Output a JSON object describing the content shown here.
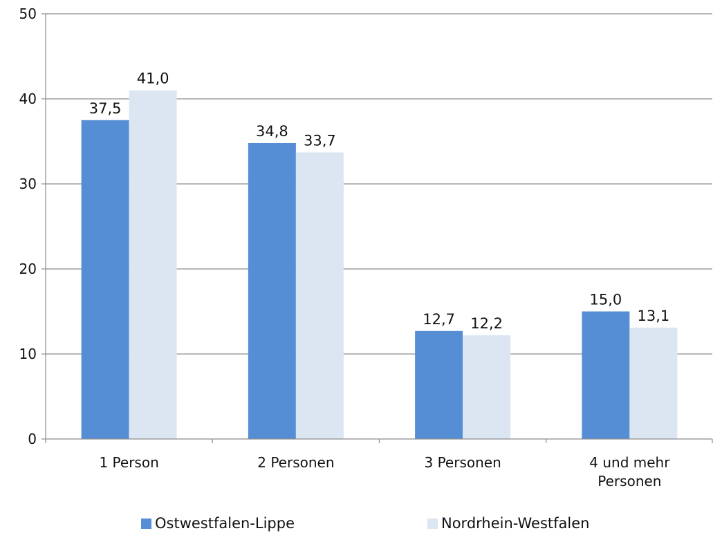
{
  "chart_data": {
    "type": "bar",
    "categories": [
      [
        "1 Person"
      ],
      [
        "2 Personen"
      ],
      [
        "3 Personen"
      ],
      [
        "4 und mehr",
        "Personen"
      ]
    ],
    "series": [
      {
        "name": "Ostwestfalen-Lippe",
        "color": "#558ed5",
        "values": [
          37.5,
          34.8,
          12.7,
          15.0
        ],
        "labels": [
          "37,5",
          "34,8",
          "12,7",
          "15,0"
        ]
      },
      {
        "name": "Nordrhein-Westfalen",
        "color": "#dce6f2",
        "values": [
          41.0,
          33.7,
          12.2,
          13.1
        ],
        "labels": [
          "41,0",
          "33,7",
          "12,2",
          "13,1"
        ]
      }
    ],
    "ylim": [
      0,
      50
    ],
    "yticks": [
      0,
      10,
      20,
      30,
      40,
      50
    ],
    "grid": true,
    "legend_position": "bottom",
    "title": "",
    "xlabel": "",
    "ylabel": ""
  }
}
